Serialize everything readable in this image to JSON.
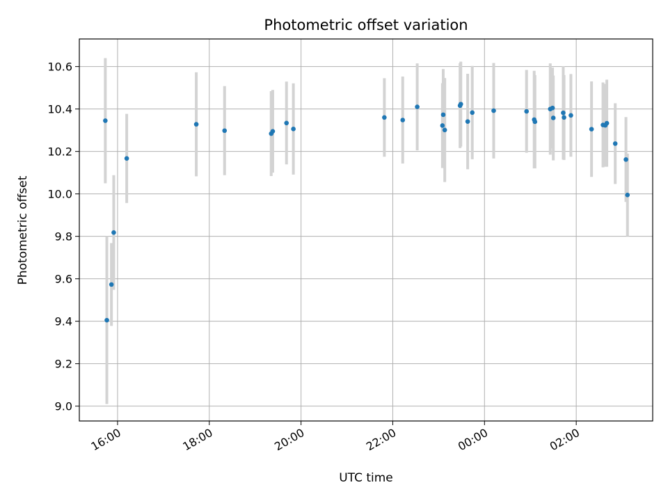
{
  "chart_data": {
    "type": "scatter",
    "title": "Photometric offset variation",
    "xlabel": "UTC time",
    "ylabel": "Photometric offset",
    "xlim": [
      "15:10",
      "03:40"
    ],
    "ylim": [
      8.93,
      10.73
    ],
    "grid": true,
    "x_ticks": [
      "16:00",
      "18:00",
      "20:00",
      "22:00",
      "00:00",
      "02:00"
    ],
    "y_ticks": [
      "9.0",
      "9.2",
      "9.4",
      "9.6",
      "9.8",
      "10.0",
      "10.2",
      "10.4",
      "10.6"
    ],
    "point_color": "#1f77b4",
    "errorbar_color": "#d3d3d3",
    "series": [
      {
        "points": [
          {
            "x": "15:44",
            "y": 10.345,
            "err": 0.295
          },
          {
            "x": "15:46",
            "y": 9.405,
            "err": 0.395
          },
          {
            "x": "15:52",
            "y": 9.573,
            "err": 0.195
          },
          {
            "x": "15:55",
            "y": 9.818,
            "err": 0.27
          },
          {
            "x": "16:12",
            "y": 10.167,
            "err": 0.21
          },
          {
            "x": "17:43",
            "y": 10.328,
            "err": 0.245
          },
          {
            "x": "18:20",
            "y": 10.298,
            "err": 0.21
          },
          {
            "x": "19:21",
            "y": 10.284,
            "err": 0.2
          },
          {
            "x": "19:23",
            "y": 10.295,
            "err": 0.195
          },
          {
            "x": "19:41",
            "y": 10.334,
            "err": 0.195
          },
          {
            "x": "19:50",
            "y": 10.306,
            "err": 0.215
          },
          {
            "x": "21:49",
            "y": 10.36,
            "err": 0.185
          },
          {
            "x": "22:13",
            "y": 10.348,
            "err": 0.205
          },
          {
            "x": "22:32",
            "y": 10.41,
            "err": 0.205
          },
          {
            "x": "23:05",
            "y": 10.322,
            "err": 0.2
          },
          {
            "x": "23:06",
            "y": 10.373,
            "err": 0.215
          },
          {
            "x": "23:08",
            "y": 10.301,
            "err": 0.245
          },
          {
            "x": "23:28",
            "y": 10.416,
            "err": 0.2
          },
          {
            "x": "23:29",
            "y": 10.423,
            "err": 0.2
          },
          {
            "x": "23:38",
            "y": 10.341,
            "err": 0.225
          },
          {
            "x": "23:44",
            "y": 10.383,
            "err": 0.22
          },
          {
            "x": "00:12",
            "y": 10.392,
            "err": 0.225
          },
          {
            "x": "00:55",
            "y": 10.389,
            "err": 0.195
          },
          {
            "x": "01:05",
            "y": 10.35,
            "err": 0.23
          },
          {
            "x": "01:06",
            "y": 10.34,
            "err": 0.22
          },
          {
            "x": "01:26",
            "y": 10.4,
            "err": 0.215
          },
          {
            "x": "01:29",
            "y": 10.405,
            "err": 0.19
          },
          {
            "x": "01:30",
            "y": 10.358,
            "err": 0.2
          },
          {
            "x": "01:43",
            "y": 10.382,
            "err": 0.22
          },
          {
            "x": "01:44",
            "y": 10.36,
            "err": 0.2
          },
          {
            "x": "01:53",
            "y": 10.37,
            "err": 0.195
          },
          {
            "x": "02:20",
            "y": 10.305,
            "err": 0.225
          },
          {
            "x": "02:35",
            "y": 10.325,
            "err": 0.2
          },
          {
            "x": "02:38",
            "y": 10.323,
            "err": 0.195
          },
          {
            "x": "02:40",
            "y": 10.333,
            "err": 0.205
          },
          {
            "x": "02:51",
            "y": 10.237,
            "err": 0.19
          },
          {
            "x": "03:05",
            "y": 10.162,
            "err": 0.2
          },
          {
            "x": "03:07",
            "y": 9.995,
            "err": 0.195
          }
        ]
      }
    ]
  }
}
